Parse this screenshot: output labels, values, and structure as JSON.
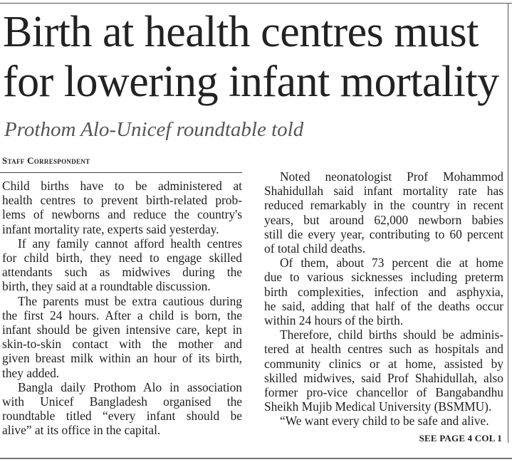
{
  "headline": {
    "line1": "Birth at health centres must",
    "line2": "for lowering infant mortality"
  },
  "subhead": "Prothom Alo-Unicef roundtable told",
  "byline": "Staff Correspondent",
  "column1": [
    [
      "Child births have to be administered at",
      "health centres to prevent birth-related prob-",
      "lems of newborns and reduce the country's",
      "infant mortality rate, experts said yesterday."
    ],
    [
      "If any family cannot afford health centres",
      "for child birth, they need to engage skilled",
      "attendants such as midwives during the",
      "birth, they said at a roundtable discussion."
    ],
    [
      "The parents must be extra cautious during",
      "the first 24 hours. After a child is born, the",
      "infant should be given intensive care, kept in",
      "skin-to-skin contact with the mother and",
      "given breast milk within an hour of its birth,",
      "they added."
    ],
    [
      "Bangla daily Prothom Alo in association",
      "with Unicef Bangladesh organised the",
      "roundtable titled “every infant should be",
      "alive” at its office in the capital."
    ]
  ],
  "column2": [
    [
      "Noted neonatologist Prof Mohammod",
      "Shahidullah said infant mortality rate has",
      "reduced remarkably in the country in recent",
      "years, but around 62,000 newborn babies",
      "still die every year, contributing to 60 percent",
      "of total child deaths."
    ],
    [
      "Of them, about 73 percent die at home",
      "due to various sicknesses including preterm",
      "birth complexities, infection and asphyxia,",
      "he said, adding that half of the deaths occur",
      "within 24 hours of the birth."
    ],
    [
      "Therefore, child births should be adminis-",
      "tered at health centres such as hospitals and",
      "community clinics or at home, assisted by",
      "skilled midwives, said Prof Shahidullah, also",
      "former pro-vice chancellor of Bangabandhu",
      "Sheikh Mujib Medical University (BSMMU)."
    ],
    [
      "“We want every child to be safe and alive."
    ]
  ],
  "continuation": "SEE PAGE 4 COL 1"
}
